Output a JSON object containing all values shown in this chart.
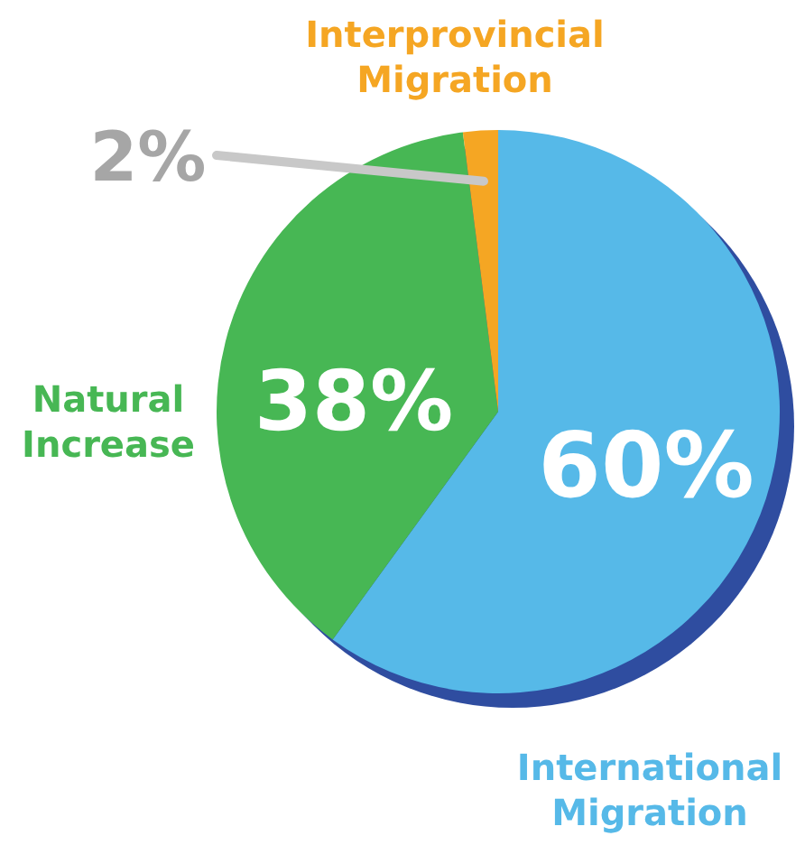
{
  "chart_data": {
    "type": "pie",
    "categories": [
      "International Migration",
      "Natural Increase",
      "Interprovincial Migration"
    ],
    "values": [
      60,
      38,
      2
    ],
    "colors": [
      "#56b9e8",
      "#47b754",
      "#f5a623"
    ],
    "value_labels": [
      "60%",
      "38%",
      "2%"
    ]
  }
}
